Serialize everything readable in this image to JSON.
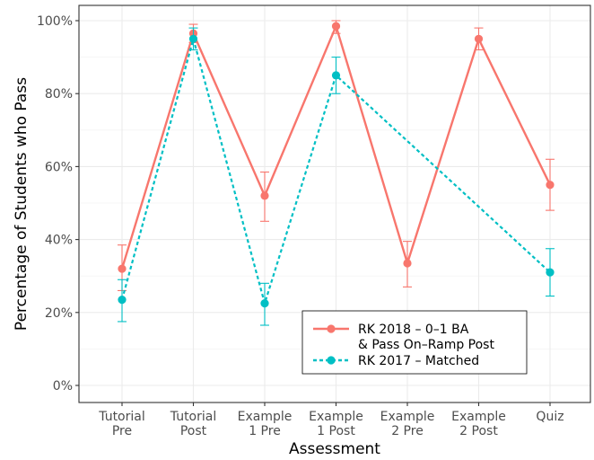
{
  "chart_data": {
    "type": "line",
    "xlabel": "Assessment",
    "ylabel": "Percentage of Students who Pass",
    "categories": [
      [
        "Tutorial",
        "Pre"
      ],
      [
        "Tutorial",
        "Post"
      ],
      [
        "Example",
        "1 Pre"
      ],
      [
        "Example",
        "1 Post"
      ],
      [
        "Example",
        "2 Pre"
      ],
      [
        "Example",
        "2 Post"
      ],
      [
        "Quiz"
      ]
    ],
    "ylim": [
      0,
      100
    ],
    "yticks": [
      0,
      20,
      40,
      60,
      80,
      100
    ],
    "ytick_labels": [
      "0%",
      "20%",
      "40%",
      "60%",
      "80%",
      "100%"
    ],
    "grid": true,
    "legend_position": "bottom-right",
    "series": [
      {
        "name_lines": [
          "RK 2018 – 0–1 BA",
          "& Pass On–Ramp Post"
        ],
        "color": "#f8766d",
        "dash": "solid",
        "points": [
          {
            "x": 0,
            "y": 32,
            "lo": 26,
            "hi": 38.5
          },
          {
            "x": 1,
            "y": 96.5,
            "lo": 94,
            "hi": 99
          },
          {
            "x": 2,
            "y": 52,
            "lo": 45,
            "hi": 58.5
          },
          {
            "x": 3,
            "y": 98.5,
            "lo": 96.5,
            "hi": 100
          },
          {
            "x": 4,
            "y": 33.5,
            "lo": 27,
            "hi": 39.5
          },
          {
            "x": 5,
            "y": 95,
            "lo": 92,
            "hi": 98
          },
          {
            "x": 6,
            "y": 55,
            "lo": 48,
            "hi": 62
          }
        ]
      },
      {
        "name_lines": [
          "RK 2017 – Matched"
        ],
        "color": "#00bfc4",
        "dash": "dashed",
        "points": [
          {
            "x": 0,
            "y": 23.5,
            "lo": 17.5,
            "hi": 29
          },
          {
            "x": 1,
            "y": 95,
            "lo": 92,
            "hi": 98
          },
          {
            "x": 2,
            "y": 22.5,
            "lo": 16.5,
            "hi": 28
          },
          {
            "x": 3,
            "y": 85,
            "lo": 80,
            "hi": 90
          },
          {
            "x": 6,
            "y": 31,
            "lo": 24.5,
            "hi": 37.5
          }
        ]
      }
    ]
  }
}
